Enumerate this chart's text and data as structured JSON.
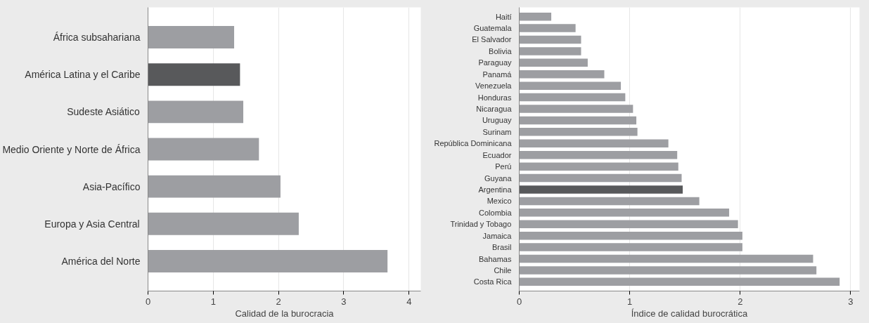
{
  "chart_data": [
    {
      "type": "bar",
      "orientation": "horizontal",
      "xlabel": "Calidad de la burocracia",
      "categories": [
        "África subsahariana",
        "América Latina y el Caribe",
        "Sudeste Asiático",
        "Medio Oriente y Norte de África",
        "Asia-Pacífico",
        "Europa y Asia Central",
        "América del Norte"
      ],
      "values": [
        1.32,
        1.41,
        1.46,
        1.7,
        2.03,
        2.31,
        3.67
      ],
      "colors": [
        "#9d9ea2",
        "#58595b",
        "#9d9ea2",
        "#9d9ea2",
        "#9d9ea2",
        "#9d9ea2",
        "#9d9ea2"
      ],
      "xlim": [
        0,
        4.18
      ],
      "xticks": [
        0,
        1,
        2,
        3,
        4
      ],
      "grid": "x"
    },
    {
      "type": "bar",
      "orientation": "horizontal",
      "xlabel": "Índice de calidad burocrática",
      "categories": [
        "Haití",
        "Guatemala",
        "El Salvador",
        "Bolivia",
        "Paraguay",
        "Panamá",
        "Venezuela",
        "Honduras",
        "Nicaragua",
        "Uruguay",
        "Surinam",
        "República Dominicana",
        "Ecuador",
        "Perú",
        "Guyana",
        "Argentina",
        "Mexico",
        "Colombia",
        "Trinidad y Tobago",
        "Jamaica",
        "Brasil",
        "Bahamas",
        "Chile",
        "Costa Rica"
      ],
      "values": [
        0.29,
        0.51,
        0.56,
        0.56,
        0.62,
        0.77,
        0.92,
        0.96,
        1.03,
        1.06,
        1.07,
        1.35,
        1.43,
        1.44,
        1.47,
        1.48,
        1.63,
        1.9,
        1.98,
        2.02,
        2.02,
        2.66,
        2.69,
        2.9
      ],
      "colors": [
        "#9d9ea2",
        "#9d9ea2",
        "#9d9ea2",
        "#9d9ea2",
        "#9d9ea2",
        "#9d9ea2",
        "#9d9ea2",
        "#9d9ea2",
        "#9d9ea2",
        "#9d9ea2",
        "#9d9ea2",
        "#9d9ea2",
        "#9d9ea2",
        "#9d9ea2",
        "#9d9ea2",
        "#58595b",
        "#9d9ea2",
        "#9d9ea2",
        "#9d9ea2",
        "#9d9ea2",
        "#9d9ea2",
        "#9d9ea2",
        "#9d9ea2",
        "#9d9ea2"
      ],
      "xlim": [
        0,
        3.08
      ],
      "xticks": [
        0,
        1,
        2,
        3
      ],
      "grid": "x"
    }
  ]
}
